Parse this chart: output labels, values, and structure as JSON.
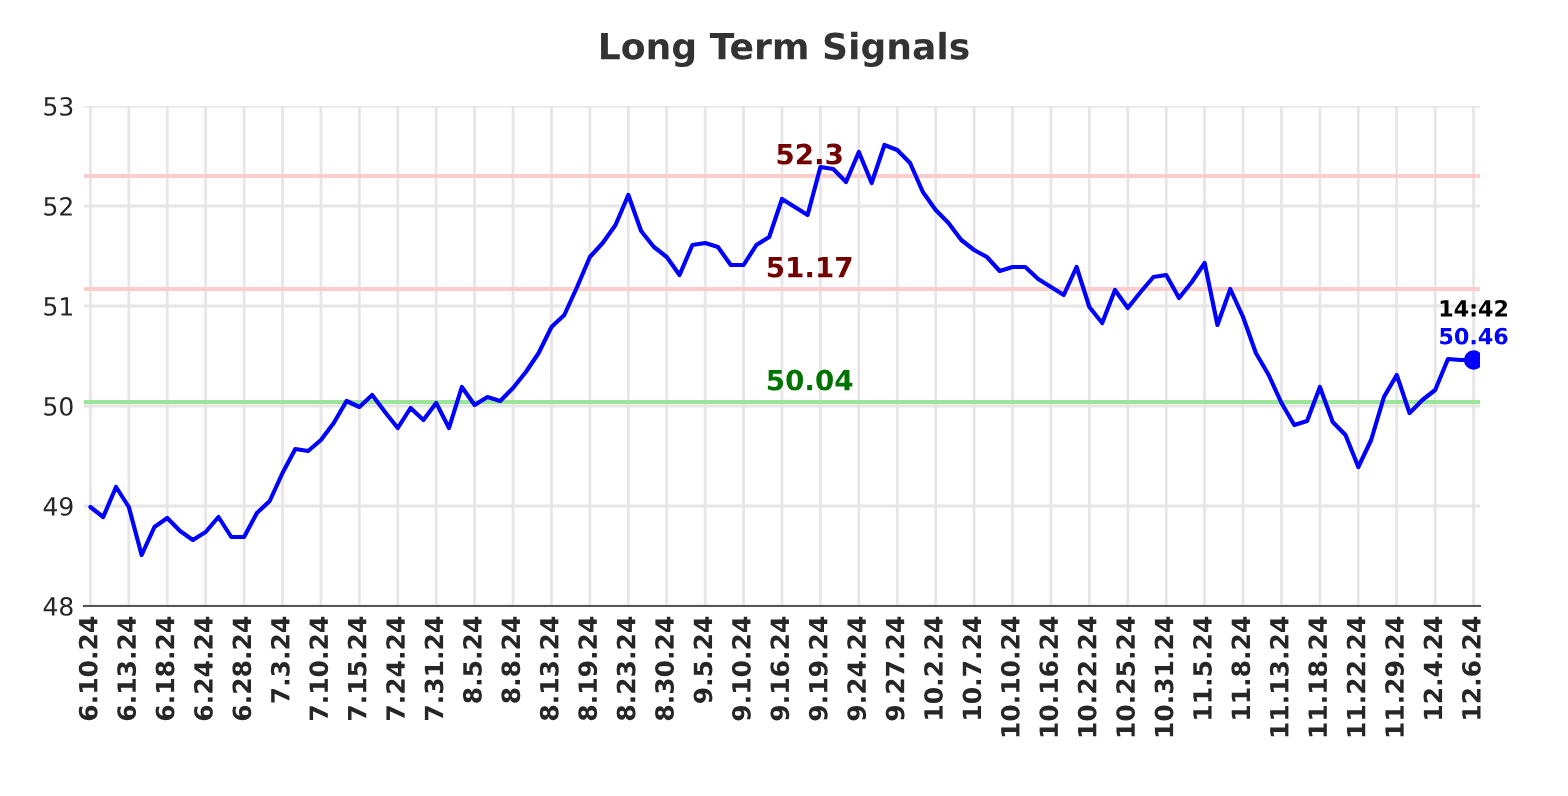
{
  "chart_data": {
    "type": "line",
    "title": "Long Term Signals",
    "categories": [
      "6.10.24",
      null,
      null,
      "6.13.24",
      null,
      null,
      "6.18.24",
      null,
      null,
      "6.24.24",
      null,
      null,
      "6.28.24",
      null,
      null,
      "7.3.24",
      null,
      null,
      "7.10.24",
      null,
      null,
      "7.15.24",
      null,
      null,
      "7.24.24",
      null,
      null,
      "7.31.24",
      null,
      null,
      "8.5.24",
      null,
      null,
      "8.8.24",
      null,
      null,
      "8.13.24",
      null,
      null,
      "8.19.24",
      null,
      null,
      "8.23.24",
      null,
      null,
      "8.30.24",
      null,
      null,
      "9.5.24",
      null,
      null,
      "9.10.24",
      null,
      null,
      "9.16.24",
      null,
      null,
      "9.19.24",
      null,
      null,
      "9.24.24",
      null,
      null,
      "9.27.24",
      null,
      null,
      "10.2.24",
      null,
      null,
      "10.7.24",
      null,
      null,
      "10.10.24",
      null,
      null,
      "10.16.24",
      null,
      null,
      "10.22.24",
      null,
      null,
      "10.25.24",
      null,
      null,
      "10.31.24",
      null,
      null,
      "11.5.24",
      null,
      null,
      "11.8.24",
      null,
      null,
      "11.13.24",
      null,
      null,
      "11.18.24",
      null,
      null,
      "11.22.24",
      null,
      null,
      "11.29.24",
      null,
      null,
      "12.4.24",
      null,
      null,
      "12.6.24"
    ],
    "series": [
      {
        "color": "#0000ff",
        "values": [
          48.99,
          48.89,
          49.19,
          48.99,
          48.51,
          48.79,
          48.88,
          48.75,
          48.66,
          48.74,
          48.89,
          48.69,
          48.69,
          48.93,
          49.05,
          49.33,
          49.57,
          49.55,
          49.66,
          49.83,
          50.05,
          49.99,
          50.11,
          49.94,
          49.78,
          49.98,
          49.86,
          50.03,
          49.78,
          50.19,
          50.01,
          50.09,
          50.05,
          50.18,
          50.34,
          50.53,
          50.79,
          50.91,
          51.19,
          51.49,
          51.63,
          51.81,
          52.11,
          51.75,
          51.59,
          51.49,
          51.31,
          51.61,
          51.63,
          51.59,
          51.41,
          51.41,
          51.61,
          51.69,
          52.07,
          51.99,
          51.91,
          52.39,
          52.37,
          52.24,
          52.54,
          52.23,
          52.61,
          52.56,
          52.43,
          52.14,
          51.96,
          51.83,
          51.66,
          51.56,
          51.49,
          51.35,
          51.39,
          51.39,
          51.27,
          51.19,
          51.11,
          51.39,
          50.99,
          50.83,
          51.16,
          50.98,
          51.14,
          51.29,
          51.31,
          51.08,
          51.24,
          51.43,
          50.81,
          51.17,
          50.89,
          50.53,
          50.31,
          50.03,
          49.81,
          49.85,
          50.19,
          49.84,
          49.71,
          49.39,
          49.66,
          50.09,
          50.31,
          49.93,
          50.06,
          50.16,
          50.47,
          50.46,
          50.46
        ]
      },
      {
        "type": "scatter",
        "color": "#0000ff",
        "marker": "circle",
        "x": [
          "12.6.24"
        ],
        "values": [
          50.46
        ]
      }
    ],
    "ylim": [
      48,
      53
    ],
    "yticks": [
      48,
      49,
      50,
      51,
      52,
      53
    ],
    "grid": true,
    "ref_lines": [
      {
        "axis": "y",
        "value": 52.3,
        "label": "52.3",
        "color": "#ffcccc"
      },
      {
        "axis": "y",
        "value": 51.17,
        "label": "51.17",
        "color": "#ffcccc"
      },
      {
        "axis": "y",
        "value": 50.04,
        "label": "50.04",
        "color": "#99e699"
      }
    ],
    "annotations": [
      {
        "text": "14:42",
        "x": "12.6.24",
        "y": 50.46
      },
      {
        "text": "50.46",
        "x": "12.6.24",
        "y": 50.46
      }
    ]
  }
}
